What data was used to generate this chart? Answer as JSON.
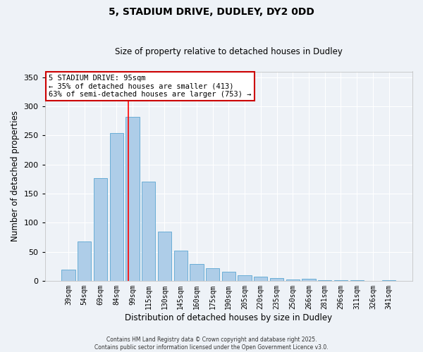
{
  "title": "5, STADIUM DRIVE, DUDLEY, DY2 0DD",
  "subtitle": "Size of property relative to detached houses in Dudley",
  "xlabel": "Distribution of detached houses by size in Dudley",
  "ylabel": "Number of detached properties",
  "categories": [
    "39sqm",
    "54sqm",
    "69sqm",
    "84sqm",
    "99sqm",
    "115sqm",
    "130sqm",
    "145sqm",
    "160sqm",
    "175sqm",
    "190sqm",
    "205sqm",
    "220sqm",
    "235sqm",
    "250sqm",
    "266sqm",
    "281sqm",
    "296sqm",
    "311sqm",
    "326sqm",
    "341sqm"
  ],
  "values": [
    19,
    68,
    177,
    254,
    282,
    171,
    85,
    52,
    29,
    22,
    15,
    10,
    7,
    5,
    2,
    4,
    1,
    1,
    1,
    0,
    1
  ],
  "bar_color": "#aecde8",
  "bar_edge_color": "#6aaed6",
  "redline_x": 3.72,
  "annotation_title": "5 STADIUM DRIVE: 95sqm",
  "annotation_line1": "← 35% of detached houses are smaller (413)",
  "annotation_line2": "63% of semi-detached houses are larger (753) →",
  "ylim": [
    0,
    360
  ],
  "yticks": [
    0,
    50,
    100,
    150,
    200,
    250,
    300,
    350
  ],
  "footer1": "Contains HM Land Registry data © Crown copyright and database right 2025.",
  "footer2": "Contains public sector information licensed under the Open Government Licence v3.0.",
  "bg_color": "#eef2f7",
  "plot_bg_color": "#eef2f7",
  "annotation_box_color": "#ffffff",
  "annotation_box_edge": "#cc0000",
  "grid_color": "#ffffff"
}
